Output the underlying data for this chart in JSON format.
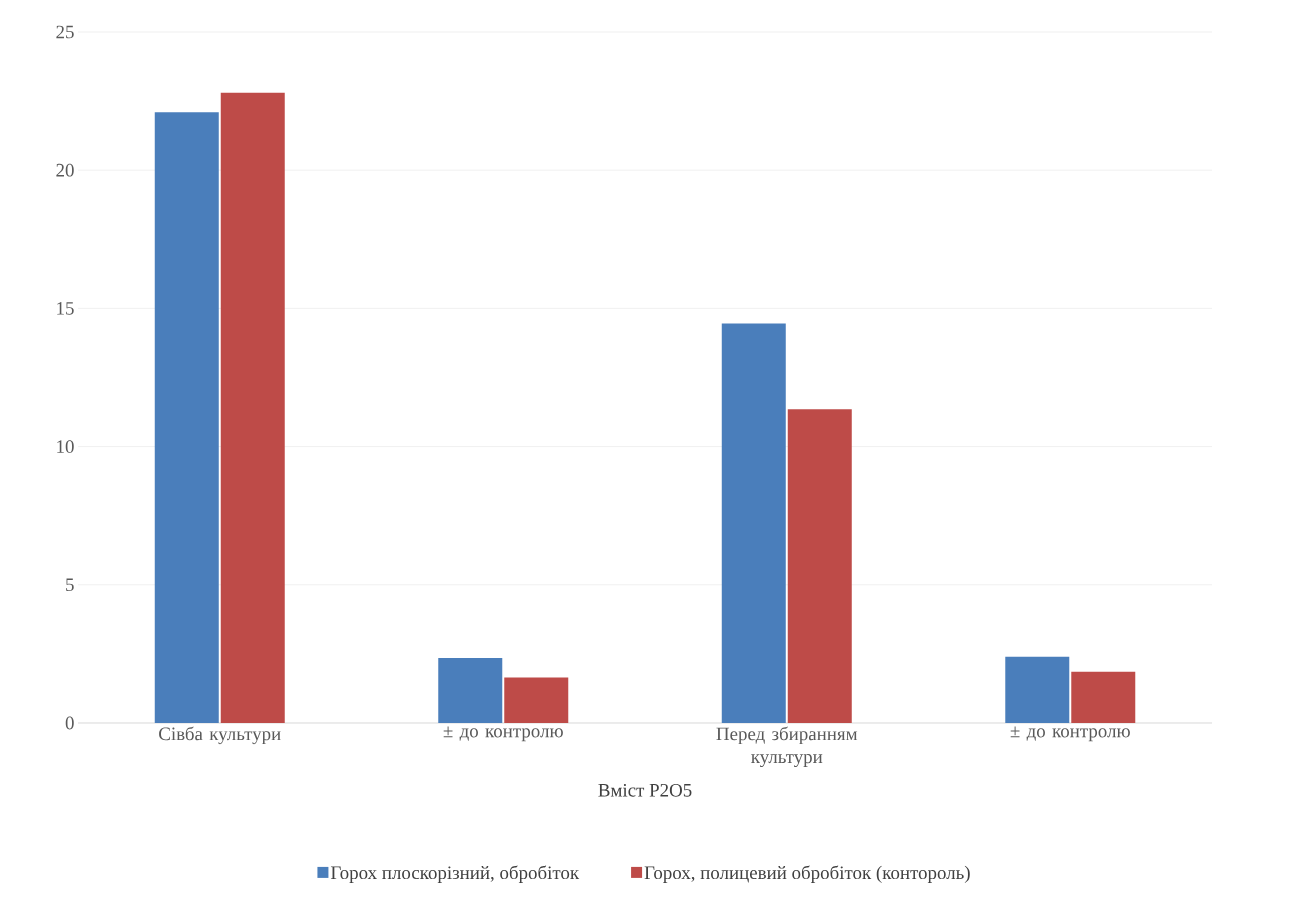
{
  "chart_data": {
    "type": "bar",
    "xlabel": "Вміст P2O5",
    "categories": [
      "Сівба культури",
      "± до контролю",
      "Перед збиранням культури",
      "± до контролю"
    ],
    "series": [
      {
        "name": "Горох плоскорізний, обробіток",
        "color": "#4a7ebb",
        "values": [
          22.1,
          2.35,
          14.45,
          2.4
        ]
      },
      {
        "name": "Горох, полицевий обробіток (контороль)",
        "color": "#be4b48",
        "values": [
          22.8,
          1.65,
          11.35,
          1.85
        ]
      }
    ],
    "ylim": [
      0,
      25
    ],
    "yticks": [
      0,
      5,
      10,
      15,
      20,
      25
    ],
    "grid": "y",
    "legend": "bottom"
  }
}
